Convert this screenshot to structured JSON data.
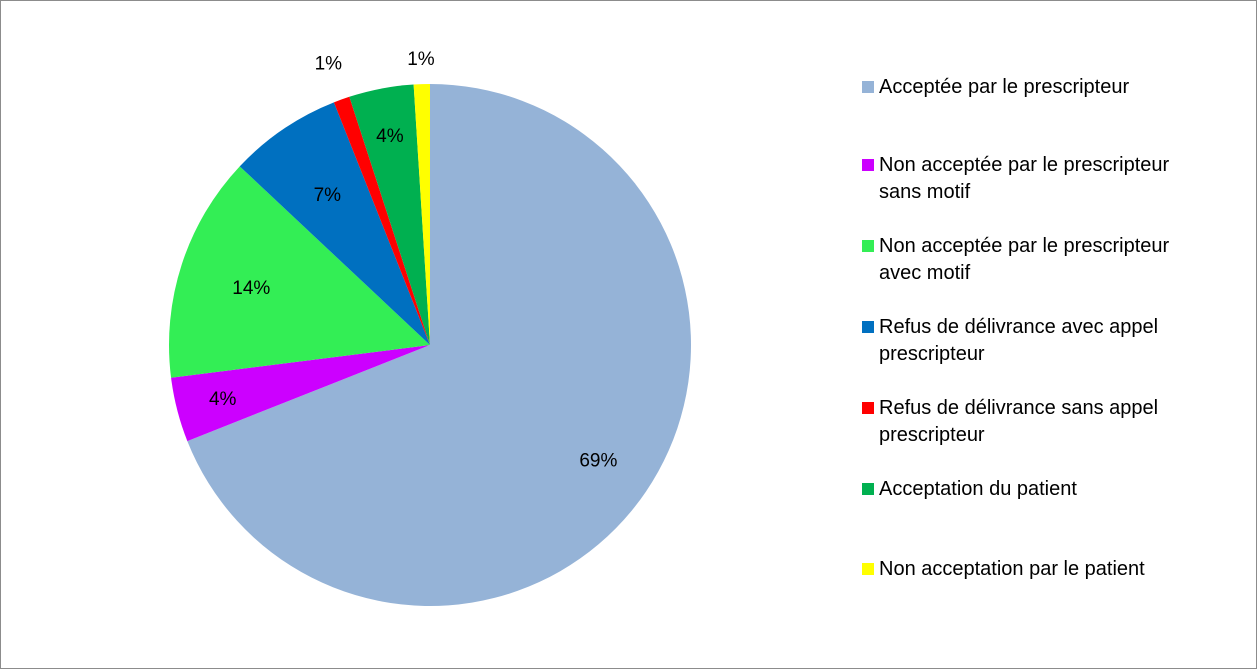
{
  "chart_data": {
    "type": "pie",
    "title": "",
    "start_angle_deg": 0,
    "direction": "clockwise",
    "legend_position": "right",
    "slices": [
      {
        "name": "Acceptée par le prescripteur",
        "value": 69,
        "label": "69%",
        "color": "#95b3d7"
      },
      {
        "name": "Non acceptée par le prescripteur sans motif",
        "value": 4,
        "label": "4%",
        "color": "#cc00ff"
      },
      {
        "name": "Non acceptée par le prescripteur avec motif",
        "value": 14,
        "label": "14%",
        "color": "#33ee55"
      },
      {
        "name": "Refus de délivrance avec appel prescripteur",
        "value": 7,
        "label": "7%",
        "color": "#0070c0"
      },
      {
        "name": "Refus de délivrance sans appel prescripteur",
        "value": 1,
        "label": "1%",
        "color": "#ff0000"
      },
      {
        "name": "Acceptation du patient",
        "value": 4,
        "label": "4%",
        "color": "#00b050"
      },
      {
        "name": "Non acceptation par le patient",
        "value": 1,
        "label": "1%",
        "color": "#ffff00"
      }
    ]
  },
  "legend": {
    "items": [
      {
        "text": "Acceptée par le prescripteur",
        "color": "#95b3d7"
      },
      {
        "text": "Non acceptée par le prescripteur\nsans motif",
        "color": "#cc00ff"
      },
      {
        "text": "Non acceptée par le prescripteur\navec motif",
        "color": "#33ee55"
      },
      {
        "text": "Refus de délivrance avec appel\nprescripteur",
        "color": "#0070c0"
      },
      {
        "text": "Refus de délivrance sans appel\nprescripteur",
        "color": "#ff0000"
      },
      {
        "text": "Acceptation du patient",
        "color": "#00b050"
      },
      {
        "text": "Non acceptation par le patient",
        "color": "#ffff00"
      }
    ]
  }
}
